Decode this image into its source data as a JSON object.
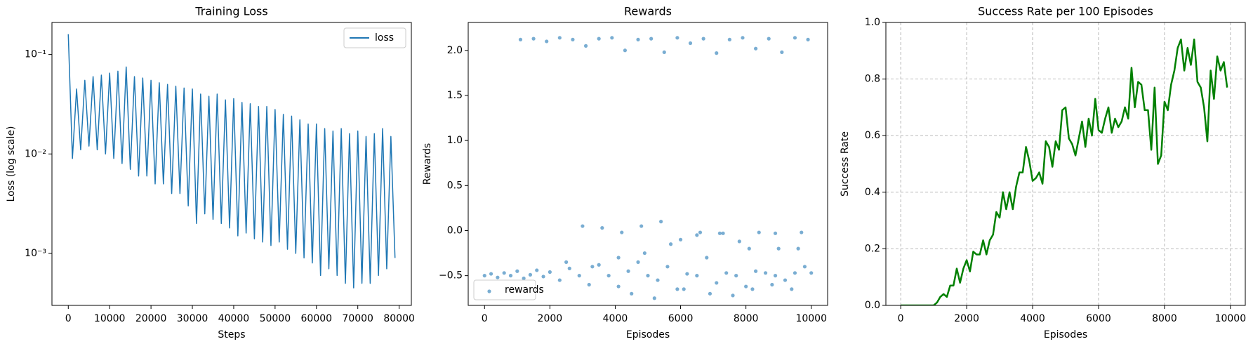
{
  "chart_data": [
    {
      "type": "line",
      "title": "Training Loss",
      "xlabel": "Steps",
      "ylabel": "Loss (log scale)",
      "log_y": true,
      "grid": false,
      "legend": "upper right",
      "xlim": [
        -3950,
        82950
      ],
      "ylim": [
        0.0003,
        0.21
      ],
      "xticks": [
        0,
        10000,
        20000,
        30000,
        40000,
        50000,
        60000,
        70000,
        80000
      ],
      "yticks": [
        {
          "value": 0.001,
          "label": "10⁻³"
        },
        {
          "value": 0.01,
          "label": "10⁻²"
        },
        {
          "value": 0.1,
          "label": "10⁻¹"
        }
      ],
      "x": [
        0,
        1000,
        2000,
        3000,
        4000,
        5000,
        6000,
        7000,
        8000,
        9000,
        10000,
        11000,
        12000,
        13000,
        14000,
        15000,
        16000,
        17000,
        18000,
        19000,
        20000,
        21000,
        22000,
        23000,
        24000,
        25000,
        26000,
        27000,
        28000,
        29000,
        30000,
        31000,
        32000,
        33000,
        34000,
        35000,
        36000,
        37000,
        38000,
        39000,
        40000,
        41000,
        42000,
        43000,
        44000,
        45000,
        46000,
        47000,
        48000,
        49000,
        50000,
        51000,
        52000,
        53000,
        54000,
        55000,
        56000,
        57000,
        58000,
        59000,
        60000,
        61000,
        62000,
        63000,
        64000,
        65000,
        66000,
        67000,
        68000,
        69000,
        70000,
        71000,
        72000,
        73000,
        74000,
        75000,
        76000,
        77000,
        78000,
        79000
      ],
      "series": [
        {
          "name": "loss",
          "color": "#1f77b4",
          "values": [
            0.16,
            0.009,
            0.045,
            0.011,
            0.055,
            0.012,
            0.06,
            0.011,
            0.062,
            0.01,
            0.065,
            0.009,
            0.068,
            0.008,
            0.075,
            0.007,
            0.06,
            0.006,
            0.058,
            0.006,
            0.055,
            0.005,
            0.052,
            0.005,
            0.05,
            0.004,
            0.048,
            0.004,
            0.046,
            0.003,
            0.045,
            0.002,
            0.04,
            0.0025,
            0.038,
            0.0022,
            0.04,
            0.002,
            0.035,
            0.0018,
            0.036,
            0.0015,
            0.033,
            0.0016,
            0.032,
            0.0014,
            0.03,
            0.0013,
            0.03,
            0.0012,
            0.028,
            0.0013,
            0.025,
            0.0011,
            0.024,
            0.001,
            0.022,
            0.0009,
            0.02,
            0.0008,
            0.02,
            0.0006,
            0.018,
            0.0007,
            0.017,
            0.0006,
            0.018,
            0.0005,
            0.016,
            0.00045,
            0.017,
            0.0005,
            0.015,
            0.0005,
            0.016,
            0.0006,
            0.018,
            0.0007,
            0.015,
            0.0009
          ]
        }
      ]
    },
    {
      "type": "scatter",
      "title": "Rewards",
      "xlabel": "Episodes",
      "ylabel": "Rewards",
      "log_y": false,
      "grid": false,
      "legend": "lower left",
      "xlim": [
        -500,
        10500
      ],
      "ylim": [
        -0.83,
        2.31
      ],
      "xticks": [
        0,
        2000,
        4000,
        6000,
        8000,
        10000
      ],
      "yticks": [
        {
          "value": -0.5,
          "label": "−0.5"
        },
        {
          "value": 0,
          "label": "0.0"
        },
        {
          "value": 0.5,
          "label": "0.5"
        },
        {
          "value": 1,
          "label": "1.0"
        },
        {
          "value": 1.5,
          "label": "1.5"
        },
        {
          "value": 2,
          "label": "2.0"
        }
      ],
      "x": [
        0,
        200,
        400,
        600,
        800,
        1000,
        1200,
        1400,
        1600,
        1800,
        2000,
        2300,
        2600,
        2900,
        3200,
        3500,
        3800,
        4100,
        4400,
        4700,
        5000,
        5300,
        5600,
        5900,
        6200,
        6500,
        6800,
        7100,
        7400,
        7700,
        8000,
        8300,
        8600,
        8900,
        9200,
        9500,
        9800,
        10000,
        1100,
        1500,
        1900,
        2300,
        2700,
        3100,
        3500,
        3900,
        4300,
        4700,
        5100,
        5500,
        5900,
        6300,
        6700,
        7100,
        7500,
        7900,
        8300,
        8700,
        9100,
        9500,
        9900,
        3000,
        3600,
        4200,
        4800,
        5400,
        6000,
        6600,
        7200,
        7800,
        8400,
        9000,
        9600,
        2500,
        3300,
        4100,
        4900,
        5700,
        6500,
        7300,
        8100,
        8900,
        9700,
        4500,
        5200,
        6100,
        6900,
        7600,
        8200,
        8800,
        9400
      ],
      "series": [
        {
          "name": "rewards",
          "color": "#1f77b4",
          "values": [
            -0.5,
            -0.48,
            -0.52,
            -0.47,
            -0.5,
            -0.45,
            -0.53,
            -0.49,
            -0.44,
            -0.51,
            -0.46,
            -0.55,
            -0.42,
            -0.5,
            -0.6,
            -0.38,
            -0.5,
            -0.62,
            -0.45,
            -0.35,
            -0.5,
            -0.55,
            -0.4,
            -0.65,
            -0.48,
            -0.5,
            -0.3,
            -0.58,
            -0.47,
            -0.5,
            -0.62,
            -0.45,
            -0.47,
            -0.5,
            -0.55,
            -0.47,
            -0.4,
            -0.47,
            2.12,
            2.13,
            2.1,
            2.14,
            2.12,
            2.05,
            2.13,
            2.14,
            2.0,
            2.12,
            2.13,
            1.98,
            2.14,
            2.08,
            2.13,
            1.97,
            2.12,
            2.14,
            2.02,
            2.13,
            1.98,
            2.14,
            2.12,
            0.05,
            0.03,
            -0.02,
            0.05,
            0.1,
            -0.1,
            -0.02,
            -0.03,
            -0.12,
            -0.02,
            -0.2,
            -0.2,
            -0.35,
            -0.4,
            -0.3,
            -0.25,
            -0.15,
            -0.05,
            -0.03,
            -0.2,
            -0.03,
            -0.02,
            -0.7,
            -0.75,
            -0.65,
            -0.7,
            -0.72,
            -0.65,
            -0.6,
            -0.65
          ]
        }
      ]
    },
    {
      "type": "line",
      "title": "Success Rate per 100 Episodes",
      "xlabel": "Episodes",
      "ylabel": "Success Rate",
      "log_y": false,
      "grid": true,
      "line_width": 2.5,
      "xlim": [
        -450,
        10450
      ],
      "ylim": [
        0,
        1
      ],
      "xticks": [
        0,
        2000,
        4000,
        6000,
        8000,
        10000
      ],
      "yticks": [
        {
          "value": 0,
          "label": "0.0"
        },
        {
          "value": 0.2,
          "label": "0.2"
        },
        {
          "value": 0.4,
          "label": "0.4"
        },
        {
          "value": 0.6,
          "label": "0.6"
        },
        {
          "value": 0.8,
          "label": "0.8"
        },
        {
          "value": 1,
          "label": "1.0"
        }
      ],
      "x": [
        0,
        100,
        200,
        300,
        400,
        500,
        600,
        700,
        800,
        900,
        1000,
        1100,
        1200,
        1300,
        1400,
        1500,
        1600,
        1700,
        1800,
        1900,
        2000,
        2100,
        2200,
        2300,
        2400,
        2500,
        2600,
        2700,
        2800,
        2900,
        3000,
        3100,
        3200,
        3300,
        3400,
        3500,
        3600,
        3700,
        3800,
        3900,
        4000,
        4100,
        4200,
        4300,
        4400,
        4500,
        4600,
        4700,
        4800,
        4900,
        5000,
        5100,
        5200,
        5300,
        5400,
        5500,
        5600,
        5700,
        5800,
        5900,
        6000,
        6100,
        6200,
        6300,
        6400,
        6500,
        6600,
        6700,
        6800,
        6900,
        7000,
        7100,
        7200,
        7300,
        7400,
        7500,
        7600,
        7700,
        7800,
        7900,
        8000,
        8100,
        8200,
        8300,
        8400,
        8500,
        8600,
        8700,
        8800,
        8900,
        9000,
        9100,
        9200,
        9300,
        9400,
        9500,
        9600,
        9700,
        9800,
        9900
      ],
      "series": [
        {
          "color": "#008000",
          "values": [
            0,
            0,
            0,
            0,
            0,
            0,
            0,
            0,
            0,
            0,
            0,
            0.01,
            0.03,
            0.04,
            0.03,
            0.07,
            0.07,
            0.13,
            0.08,
            0.13,
            0.16,
            0.12,
            0.19,
            0.18,
            0.18,
            0.23,
            0.18,
            0.23,
            0.25,
            0.33,
            0.31,
            0.4,
            0.34,
            0.4,
            0.34,
            0.42,
            0.47,
            0.47,
            0.56,
            0.51,
            0.44,
            0.45,
            0.47,
            0.43,
            0.58,
            0.56,
            0.49,
            0.58,
            0.55,
            0.69,
            0.7,
            0.59,
            0.57,
            0.53,
            0.59,
            0.65,
            0.56,
            0.66,
            0.6,
            0.73,
            0.62,
            0.61,
            0.66,
            0.7,
            0.61,
            0.66,
            0.63,
            0.65,
            0.7,
            0.66,
            0.84,
            0.7,
            0.79,
            0.78,
            0.69,
            0.69,
            0.55,
            0.77,
            0.5,
            0.53,
            0.72,
            0.69,
            0.78,
            0.83,
            0.91,
            0.94,
            0.83,
            0.91,
            0.85,
            0.94,
            0.79,
            0.77,
            0.7,
            0.58,
            0.83,
            0.73,
            0.88,
            0.83,
            0.86,
            0.77
          ]
        }
      ]
    }
  ]
}
